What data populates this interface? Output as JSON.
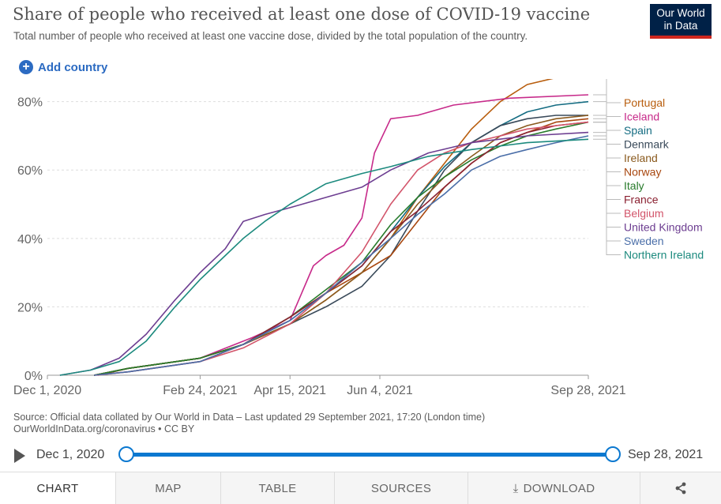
{
  "header": {
    "title": "Share of people who received at least one dose of COVID-19 vaccine",
    "subtitle": "Total number of people who received at least one vaccine dose, divided by the total population of the country."
  },
  "logo": {
    "line1": "Our World",
    "line2": "in Data"
  },
  "add_country_label": "Add country",
  "source": {
    "line1": "Source: Official data collated by Our World in Data – Last updated 29 September 2021, 17:20 (London time)",
    "line2": "OurWorldInData.org/coronavirus • CC BY"
  },
  "timeline": {
    "start_label": "Dec 1, 2020",
    "end_label": "Sep 28, 2021"
  },
  "tabs": [
    {
      "label": "CHART",
      "active": true
    },
    {
      "label": "MAP",
      "active": false
    },
    {
      "label": "TABLE",
      "active": false
    },
    {
      "label": "SOURCES",
      "active": false
    },
    {
      "label": "DOWNLOAD",
      "active": false
    },
    {
      "label": "",
      "active": false
    }
  ],
  "chart_data": {
    "type": "line",
    "title": "Share of people who received at least one dose of COVID-19 vaccine",
    "xlim": [
      "2020-12-01",
      "2021-09-28"
    ],
    "ylim": [
      0,
      82
    ],
    "y_ticks": [
      0,
      20,
      40,
      60,
      80
    ],
    "y_tick_labels": [
      "0%",
      "20%",
      "40%",
      "60%",
      "80%"
    ],
    "x_ticks": [
      "2020-12-01",
      "2021-02-24",
      "2021-04-15",
      "2021-06-04",
      "2021-09-28"
    ],
    "x_tick_labels": [
      "Dec 1, 2020",
      "Feb 24, 2021",
      "Apr 15, 2021",
      "Jun 4, 2021",
      "Sep 28, 2021"
    ],
    "grid": "horizontal dashed",
    "legend": "right, labels at line ends",
    "series": [
      {
        "name": "Portugal",
        "color": "#b85d0d",
        "x": [
          "2020-12-27",
          "2021-01-15",
          "2021-02-24",
          "2021-03-20",
          "2021-04-15",
          "2021-05-05",
          "2021-05-25",
          "2021-06-10",
          "2021-06-25",
          "2021-07-10",
          "2021-07-25",
          "2021-08-10",
          "2021-08-25",
          "2021-09-10",
          "2021-09-28"
        ],
        "y": [
          0,
          2,
          5,
          9,
          15,
          22,
          30,
          40,
          52,
          62,
          72,
          80,
          85,
          87,
          88
        ]
      },
      {
        "name": "Iceland",
        "color": "#c72a8a",
        "x": [
          "2020-12-29",
          "2021-01-15",
          "2021-02-24",
          "2021-03-25",
          "2021-04-15",
          "2021-04-28",
          "2021-05-05",
          "2021-05-15",
          "2021-05-25",
          "2021-06-01",
          "2021-06-10",
          "2021-06-25",
          "2021-07-15",
          "2021-08-15",
          "2021-09-28"
        ],
        "y": [
          0,
          2,
          5,
          11,
          16,
          32,
          35,
          38,
          46,
          65,
          75,
          76,
          79,
          81,
          82
        ]
      },
      {
        "name": "Spain",
        "color": "#146c82",
        "x": [
          "2020-12-27",
          "2021-01-15",
          "2021-02-24",
          "2021-03-20",
          "2021-04-15",
          "2021-05-05",
          "2021-05-25",
          "2021-06-10",
          "2021-06-25",
          "2021-07-10",
          "2021-07-25",
          "2021-08-10",
          "2021-08-25",
          "2021-09-10",
          "2021-09-28"
        ],
        "y": [
          0,
          2,
          5,
          9,
          16,
          24,
          32,
          42,
          52,
          61,
          68,
          73,
          77,
          79,
          80
        ]
      },
      {
        "name": "Denmark",
        "color": "#3a4a5a",
        "x": [
          "2020-12-27",
          "2021-01-15",
          "2021-02-24",
          "2021-03-20",
          "2021-04-15",
          "2021-05-05",
          "2021-05-25",
          "2021-06-10",
          "2021-06-25",
          "2021-07-10",
          "2021-07-25",
          "2021-08-10",
          "2021-08-25",
          "2021-09-10",
          "2021-09-28"
        ],
        "y": [
          0,
          2,
          5,
          9,
          15,
          20,
          26,
          35,
          48,
          60,
          68,
          73,
          75,
          76,
          76
        ]
      },
      {
        "name": "Norway",
        "color": "#a8470f",
        "x": [
          "2020-12-27",
          "2021-01-15",
          "2021-02-24",
          "2021-03-20",
          "2021-04-15",
          "2021-05-05",
          "2021-05-25",
          "2021-06-10",
          "2021-06-25",
          "2021-07-10",
          "2021-07-25",
          "2021-08-10",
          "2021-08-25",
          "2021-09-10",
          "2021-09-28"
        ],
        "y": [
          0,
          2,
          5,
          9,
          17,
          24,
          30,
          35,
          45,
          55,
          62,
          68,
          71,
          74,
          75
        ]
      },
      {
        "name": "Ireland",
        "color": "#8a5a1e",
        "x": [
          "2020-12-29",
          "2021-01-15",
          "2021-02-24",
          "2021-03-20",
          "2021-04-15",
          "2021-05-05",
          "2021-05-25",
          "2021-06-10",
          "2021-06-25",
          "2021-07-10",
          "2021-07-25",
          "2021-08-10",
          "2021-08-25",
          "2021-09-10",
          "2021-09-28"
        ],
        "y": [
          0,
          2,
          5,
          9,
          15,
          22,
          30,
          40,
          50,
          58,
          64,
          70,
          73,
          75,
          76
        ]
      },
      {
        "name": "Italy",
        "color": "#287b2b",
        "x": [
          "2020-12-27",
          "2021-01-15",
          "2021-02-24",
          "2021-03-20",
          "2021-04-15",
          "2021-05-05",
          "2021-05-25",
          "2021-06-10",
          "2021-06-25",
          "2021-07-10",
          "2021-07-25",
          "2021-08-10",
          "2021-08-25",
          "2021-09-10",
          "2021-09-28"
        ],
        "y": [
          0,
          2,
          5,
          9,
          17,
          25,
          33,
          44,
          52,
          58,
          63,
          67,
          70,
          72,
          74
        ]
      },
      {
        "name": "France",
        "color": "#8b2232",
        "x": [
          "2020-12-27",
          "2021-01-15",
          "2021-02-24",
          "2021-03-20",
          "2021-04-15",
          "2021-05-05",
          "2021-05-25",
          "2021-06-10",
          "2021-06-25",
          "2021-07-10",
          "2021-07-25",
          "2021-08-10",
          "2021-08-25",
          "2021-09-10",
          "2021-09-28"
        ],
        "y": [
          0,
          1,
          4,
          9,
          17,
          24,
          32,
          42,
          48,
          55,
          62,
          68,
          71,
          73,
          74
        ]
      },
      {
        "name": "Belgium",
        "color": "#d2546a",
        "x": [
          "2020-12-28",
          "2021-01-15",
          "2021-02-24",
          "2021-03-20",
          "2021-04-15",
          "2021-05-05",
          "2021-05-25",
          "2021-06-10",
          "2021-06-25",
          "2021-07-10",
          "2021-07-25",
          "2021-08-10",
          "2021-08-25",
          "2021-09-10",
          "2021-09-28"
        ],
        "y": [
          0,
          1,
          4,
          8,
          15,
          24,
          36,
          50,
          60,
          65,
          68,
          70,
          72,
          73,
          74
        ]
      },
      {
        "name": "United Kingdom",
        "color": "#6d3e91",
        "x": [
          "2020-12-08",
          "2020-12-25",
          "2021-01-10",
          "2021-01-25",
          "2021-02-10",
          "2021-02-24",
          "2021-03-10",
          "2021-03-20",
          "2021-04-01",
          "2021-04-15",
          "2021-05-05",
          "2021-05-25",
          "2021-06-10",
          "2021-07-01",
          "2021-07-25",
          "2021-08-25",
          "2021-09-28"
        ],
        "y": [
          0,
          1.5,
          5,
          12,
          22,
          30,
          37,
          45,
          47,
          49,
          52,
          55,
          60,
          65,
          68,
          70,
          71
        ]
      },
      {
        "name": "Sweden",
        "color": "#4a6ea8",
        "x": [
          "2020-12-27",
          "2021-01-15",
          "2021-02-24",
          "2021-03-20",
          "2021-04-15",
          "2021-05-05",
          "2021-05-25",
          "2021-06-10",
          "2021-06-25",
          "2021-07-10",
          "2021-07-25",
          "2021-08-10",
          "2021-08-25",
          "2021-09-10",
          "2021-09-28"
        ],
        "y": [
          0,
          1,
          4,
          9,
          16,
          24,
          33,
          40,
          47,
          53,
          60,
          64,
          66,
          68,
          70
        ]
      },
      {
        "name": "Northern Ireland",
        "color": "#1c8a7e",
        "x": [
          "2020-12-08",
          "2020-12-25",
          "2021-01-10",
          "2021-01-25",
          "2021-02-10",
          "2021-02-24",
          "2021-03-10",
          "2021-03-20",
          "2021-04-01",
          "2021-04-15",
          "2021-05-05",
          "2021-05-25",
          "2021-06-10",
          "2021-07-01",
          "2021-07-25",
          "2021-08-25",
          "2021-09-28"
        ],
        "y": [
          0,
          1.5,
          4,
          10,
          20,
          28,
          35,
          40,
          45,
          50,
          56,
          59,
          61,
          64,
          66,
          68,
          69
        ]
      }
    ]
  }
}
